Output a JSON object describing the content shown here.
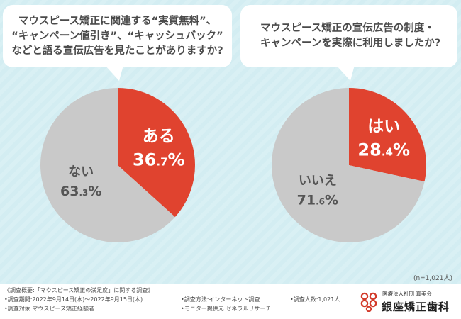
{
  "question_1": {
    "lines": [
      "マウスピース矯正に関連する“実質無料”、",
      "“キャンペーン値引き”、“キャッシュバック”",
      "などと語る宣伝広告を見たことがありますか?"
    ]
  },
  "question_2": {
    "lines": [
      "マウスピース矯正の宣伝広告の制度・",
      "キャンペーンを実際に利用しましたか?"
    ]
  },
  "chart_data": [
    {
      "type": "pie",
      "title": "マウスピース矯正に関連する“実質無料”、“キャンペーン値引き”、“キャッシュバック”などと語る宣伝広告を見たことがありますか?",
      "labels": [
        "ある",
        "ない"
      ],
      "values": [
        36.7,
        63.3
      ],
      "colors": [
        "#e0432f",
        "#c9c9c9"
      ],
      "value_texts": [
        {
          "major": "36",
          "minor": ".7",
          "unit": "%"
        },
        {
          "major": "63",
          "minor": ".3",
          "unit": "%"
        }
      ],
      "start": "12 o'clock",
      "direction": "clockwise"
    },
    {
      "type": "pie",
      "title": "マウスピース矯正の宣伝広告の制度・キャンペーンを実際に利用しましたか?",
      "labels": [
        "はい",
        "いいえ"
      ],
      "values": [
        28.4,
        71.6
      ],
      "colors": [
        "#e0432f",
        "#c9c9c9"
      ],
      "value_texts": [
        {
          "major": "28",
          "minor": ".4",
          "unit": "%"
        },
        {
          "major": "71",
          "minor": ".6",
          "unit": "%"
        }
      ],
      "start": "12 o'clock",
      "direction": "clockwise"
    }
  ],
  "sample_size": "(n=1,021人)",
  "notes": {
    "summary": "《調査概要:「マウスピース矯正の満足度」に関する調査》",
    "period": "•調査期間:2022年9月14日(水)〜2022年9月15日(木)",
    "target": "•調査対象:マウスピース矯正経験者",
    "method": "•調査方法:インターネット調査",
    "monitor": "•モニター提供元:ゼネラルリサーチ",
    "count": "•調査人数:1,021人"
  },
  "logo": {
    "sub": "医療法人社団 真美会",
    "name": "銀座矯正歯科"
  }
}
